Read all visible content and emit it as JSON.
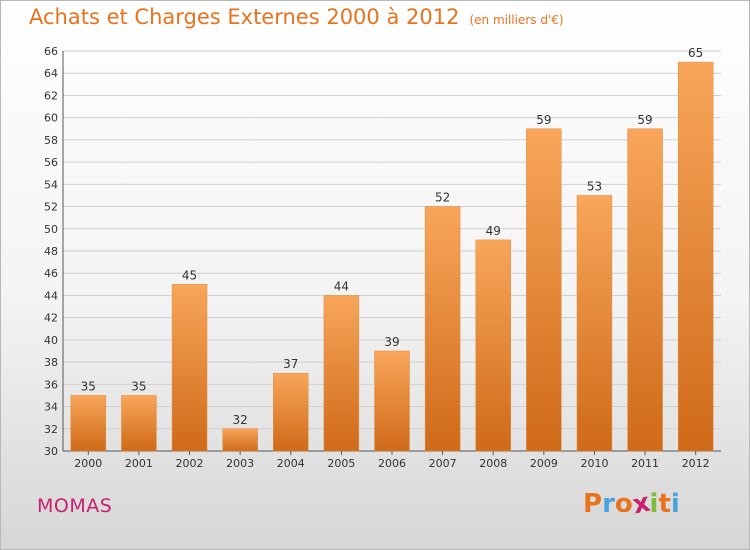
{
  "header": {
    "title": "Achats et Charges Externes 2000 à 2012",
    "unit": "(en milliers d'€)"
  },
  "commune": "MOMAS",
  "logo": {
    "letters": [
      "P",
      "r",
      "o",
      "x",
      "i",
      "t",
      "i"
    ],
    "colors": [
      "#e8731f",
      "#4aa3df",
      "#e8731f",
      "#c8206e",
      "#7dbb3a",
      "#e8731f",
      "#4aa3df"
    ]
  },
  "colors": {
    "bar_light": "#f8a65a",
    "bar_dark": "#cf6a18",
    "grid": "#d0d0d0"
  },
  "chart_data": {
    "type": "bar",
    "title": "Achats et Charges Externes 2000 à 2012",
    "subtitle": "(en milliers d'€)",
    "categories": [
      "2000",
      "2001",
      "2002",
      "2003",
      "2004",
      "2005",
      "2006",
      "2007",
      "2008",
      "2009",
      "2010",
      "2011",
      "2012"
    ],
    "values": [
      35,
      35,
      45,
      32,
      37,
      44,
      39,
      52,
      49,
      59,
      53,
      59,
      65
    ],
    "ylim": [
      30,
      66
    ],
    "ytick_step": 2,
    "grid": true,
    "legend": "none"
  }
}
